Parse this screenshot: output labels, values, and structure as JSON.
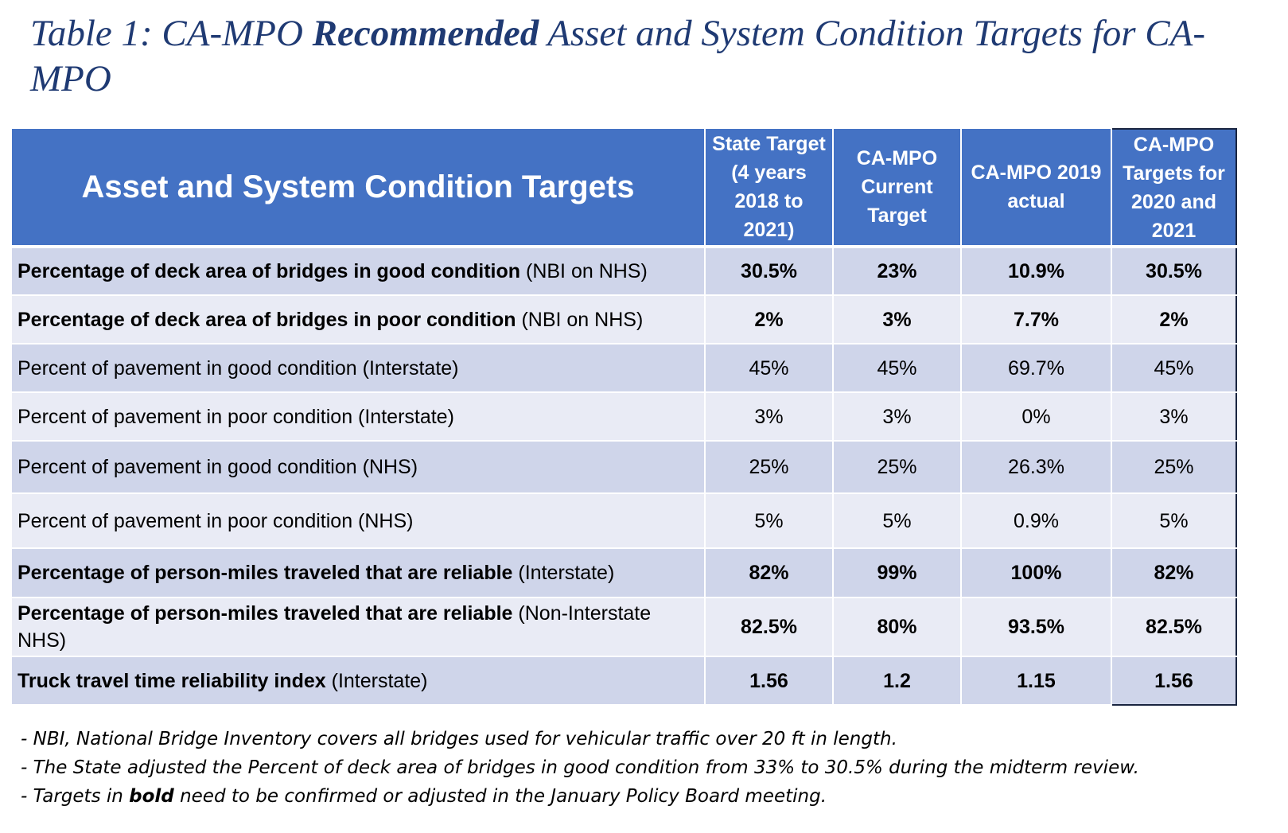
{
  "title": {
    "prefix": "Table 1: CA-MPO ",
    "emphasis": "Recommended",
    "suffix": " Asset and System Condition Targets for CA-MPO"
  },
  "table": {
    "headers": [
      "Asset and System Condition Targets",
      "State Target (4 years 2018 to 2021)",
      "CA-MPO Current Target",
      "CA-MPO 2019 actual",
      "CA-MPO Targets for 2020 and 2021"
    ],
    "rows": [
      {
        "label_bold": "Percentage of deck area of bridges in good condition",
        "label_rest": " (NBI on NHS)",
        "values": [
          "30.5%",
          "23%",
          "10.9%",
          "30.5%"
        ]
      },
      {
        "label_bold": "Percentage of deck area of bridges in poor condition",
        "label_rest": " (NBI on NHS)",
        "values": [
          "2%",
          "3%",
          "7.7%",
          "2%"
        ]
      },
      {
        "label_bold": "",
        "label_rest": "Percent of pavement in good condition (Interstate)",
        "values": [
          "45%",
          "45%",
          "69.7%",
          "45%"
        ]
      },
      {
        "label_bold": "",
        "label_rest": "Percent of pavement in poor condition (Interstate)",
        "values": [
          "3%",
          "3%",
          "0%",
          "3%"
        ]
      },
      {
        "label_bold": "",
        "label_rest": "Percent of pavement in good condition (NHS)",
        "values": [
          "25%",
          "25%",
          "26.3%",
          "25%"
        ]
      },
      {
        "label_bold": "",
        "label_rest": "Percent of pavement in poor condition (NHS)",
        "values": [
          "5%",
          "5%",
          "0.9%",
          "5%"
        ]
      },
      {
        "label_bold": "Percentage of person-miles traveled that are reliable",
        "label_rest": " (Interstate)",
        "values": [
          "82%",
          "99%",
          "100%",
          "82%"
        ]
      },
      {
        "label_bold": "Percentage of person-miles traveled that are reliable",
        "label_rest": " (Non-Interstate NHS)",
        "values": [
          "82.5%",
          "80%",
          "93.5%",
          "82.5%"
        ]
      },
      {
        "label_bold": "Truck travel time reliability index",
        "label_rest": " (Interstate)",
        "values": [
          "1.56",
          "1.2",
          "1.15",
          "1.56"
        ]
      }
    ]
  },
  "notes": {
    "line1": "- NBI, National Bridge Inventory covers all bridges used for vehicular traffic over 20 ft in length.",
    "line2": "- The State adjusted the Percent of deck area of bridges in good condition from 33% to 30.5% during the midterm review.",
    "line3_prefix": "- Targets in ",
    "line3_bold": "bold",
    "line3_suffix": " need to be confirmed or adjusted in the January Policy Board meeting."
  }
}
